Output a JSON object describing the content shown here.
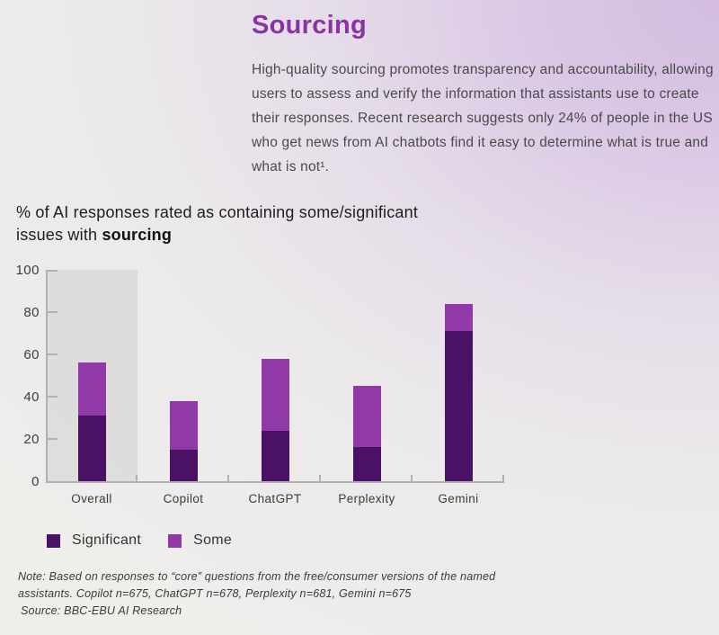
{
  "header": {
    "title": "Sourcing",
    "description": "High-quality sourcing promotes transparency and accountability, allowing users to assess and verify the information that assistants use to create their responses. Recent research suggests only 24% of people in the US who get news from AI chatbots find it easy to determine what is true and what is not¹."
  },
  "chart_heading": {
    "line1": "% of AI responses rated as containing some/significant",
    "line2_prefix": "issues with ",
    "emphasis": "sourcing"
  },
  "chart_data": {
    "type": "bar",
    "stacked": true,
    "title": "% of AI responses rated as containing some/significant issues with sourcing",
    "categories": [
      "Overall",
      "Copilot",
      "ChatGPT",
      "Perplexity",
      "Gemini"
    ],
    "series": [
      {
        "name": "Significant",
        "color": "#4b1164",
        "values": [
          31,
          15,
          24,
          16,
          71
        ]
      },
      {
        "name": "Some",
        "color": "#9239a9",
        "values": [
          25,
          23,
          34,
          29,
          13
        ]
      }
    ],
    "totals": [
      56,
      38,
      58,
      45,
      84
    ],
    "xlabel": "",
    "ylabel": "",
    "ylim": [
      0,
      100
    ],
    "yticks": [
      0,
      20,
      40,
      60,
      80,
      100
    ],
    "grid": false,
    "highlight_category": "Overall",
    "legend_position": "bottom"
  },
  "legend": {
    "items": [
      {
        "label": "Significant",
        "color": "#4b1164"
      },
      {
        "label": "Some",
        "color": "#9239a9"
      }
    ]
  },
  "footnote": {
    "note": "Note: Based on responses to “core” questions from the free/consumer versions of the named assistants. Copilot n=675, ChatGPT n=678, Perplexity n=681, Gemini n=675",
    "source": "Source: BBC-EBU AI Research"
  },
  "colors": {
    "title_accent": "#8a32a7",
    "significant": "#4b1164",
    "some": "#9239a9",
    "axis": "#b3b0b3",
    "background_top_right": "#d3bce1",
    "background_bottom_left": "#eeeeeb"
  }
}
